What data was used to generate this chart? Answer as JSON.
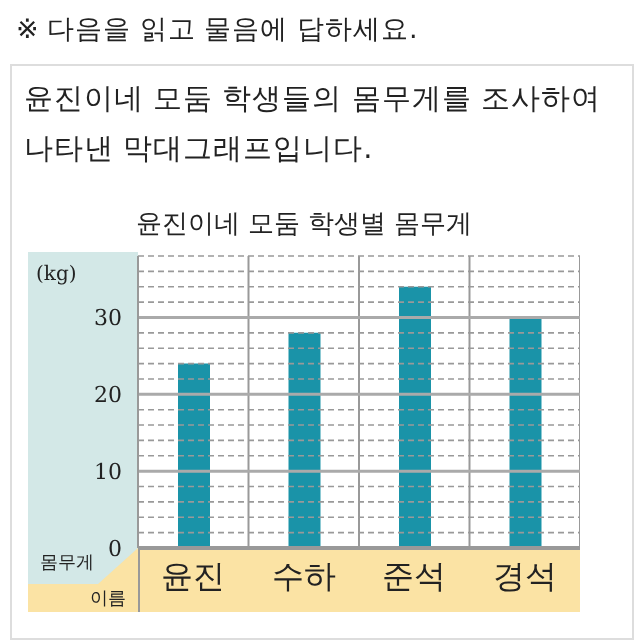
{
  "chart_data": {
    "type": "bar",
    "title": "윤진이네 모둠 학생별 몸무게",
    "xlabel": "이름",
    "ylabel": "몸무게",
    "annotations": [
      "※ 다음을 읽고 물음에 답하세요.",
      "윤진이네 모둠 학생들의 몸무게를 조사하여 나타낸 막대그래프입니다.",
      "(kg)"
    ],
    "categories": [
      "윤진",
      "수하",
      "준석",
      "경석"
    ],
    "values": [
      24,
      28,
      34,
      30
    ],
    "color": "#1a93a8",
    "ylim": [
      0,
      38
    ],
    "yticks": [
      0,
      {
        "value": 2,
        "label": null
      },
      {
        "value": 4,
        "label": null
      },
      {
        "value": 6,
        "label": null
      },
      {
        "value": 8,
        "label": null
      },
      10,
      {
        "value": 12,
        "label": null
      },
      {
        "value": 14,
        "label": null
      },
      {
        "value": 16,
        "label": null
      },
      {
        "value": 18,
        "label": null
      },
      20,
      {
        "value": 22,
        "label": null
      },
      {
        "value": 24,
        "label": null
      },
      {
        "value": 26,
        "label": null
      },
      {
        "value": 28,
        "label": null
      },
      30,
      {
        "value": 32,
        "label": null
      },
      {
        "value": 34,
        "label": null
      },
      {
        "value": 36,
        "label": null
      },
      {
        "value": 38,
        "label": null
      }
    ],
    "grid": true
  }
}
